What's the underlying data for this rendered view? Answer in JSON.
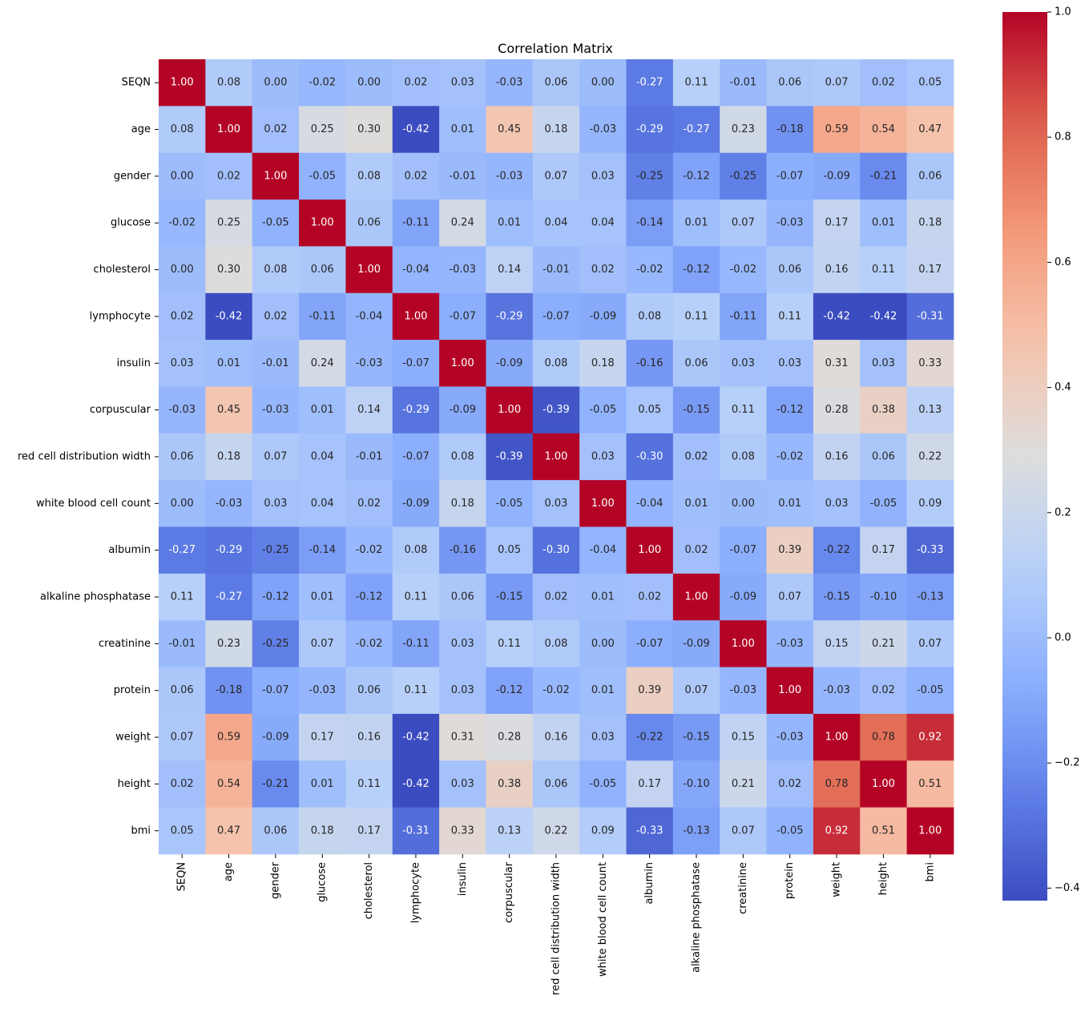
{
  "chart_data": {
    "type": "heatmap",
    "title": "Correlation Matrix",
    "xlabel": "",
    "ylabel": "",
    "colormap": "coolwarm",
    "vmin": -0.42,
    "vmax": 1.0,
    "colorbar_ticks": [
      "1.0",
      "0.8",
      "0.6",
      "0.4",
      "0.2",
      "0.0",
      "−0.2",
      "−0.4"
    ],
    "colorbar_tick_values": [
      1.0,
      0.8,
      0.6,
      0.4,
      0.2,
      0.0,
      -0.2,
      -0.4
    ],
    "labels": [
      "SEQN",
      "age",
      "gender",
      "glucose",
      "cholesterol",
      "lymphocyte",
      "insulin",
      "corpuscular",
      "red cell distribution width",
      "white blood cell count",
      "albumin",
      "alkaline phosphatase",
      "creatinine",
      "protein",
      "weight",
      "height",
      "bmi"
    ],
    "matrix": [
      [
        1.0,
        0.08,
        0.0,
        -0.02,
        0.0,
        0.02,
        0.03,
        -0.03,
        0.06,
        0.0,
        -0.27,
        0.11,
        -0.01,
        0.06,
        0.07,
        0.02,
        0.05
      ],
      [
        0.08,
        1.0,
        0.02,
        0.25,
        0.3,
        -0.42,
        0.01,
        0.45,
        0.18,
        -0.03,
        -0.29,
        -0.27,
        0.23,
        -0.18,
        0.59,
        0.54,
        0.47
      ],
      [
        0.0,
        0.02,
        1.0,
        -0.05,
        0.08,
        0.02,
        -0.01,
        -0.03,
        0.07,
        0.03,
        -0.25,
        -0.12,
        -0.25,
        -0.07,
        -0.09,
        -0.21,
        0.06
      ],
      [
        -0.02,
        0.25,
        -0.05,
        1.0,
        0.06,
        -0.11,
        0.24,
        0.01,
        0.04,
        0.04,
        -0.14,
        0.01,
        0.07,
        -0.03,
        0.17,
        0.01,
        0.18
      ],
      [
        0.0,
        0.3,
        0.08,
        0.06,
        1.0,
        -0.04,
        -0.03,
        0.14,
        -0.01,
        0.02,
        -0.02,
        -0.12,
        -0.02,
        0.06,
        0.16,
        0.11,
        0.17
      ],
      [
        0.02,
        -0.42,
        0.02,
        -0.11,
        -0.04,
        1.0,
        -0.07,
        -0.29,
        -0.07,
        -0.09,
        0.08,
        0.11,
        -0.11,
        0.11,
        -0.42,
        -0.42,
        -0.31
      ],
      [
        0.03,
        0.01,
        -0.01,
        0.24,
        -0.03,
        -0.07,
        1.0,
        -0.09,
        0.08,
        0.18,
        -0.16,
        0.06,
        0.03,
        0.03,
        0.31,
        0.03,
        0.33
      ],
      [
        -0.03,
        0.45,
        -0.03,
        0.01,
        0.14,
        -0.29,
        -0.09,
        1.0,
        -0.39,
        -0.05,
        0.05,
        -0.15,
        0.11,
        -0.12,
        0.28,
        0.38,
        0.13
      ],
      [
        0.06,
        0.18,
        0.07,
        0.04,
        -0.01,
        -0.07,
        0.08,
        -0.39,
        1.0,
        0.03,
        -0.3,
        0.02,
        0.08,
        -0.02,
        0.16,
        0.06,
        0.22
      ],
      [
        0.0,
        -0.03,
        0.03,
        0.04,
        0.02,
        -0.09,
        0.18,
        -0.05,
        0.03,
        1.0,
        -0.04,
        0.01,
        -0.0,
        0.01,
        0.03,
        -0.05,
        0.09
      ],
      [
        -0.27,
        -0.29,
        -0.25,
        -0.14,
        -0.02,
        0.08,
        -0.16,
        0.05,
        -0.3,
        -0.04,
        1.0,
        0.02,
        -0.07,
        0.39,
        -0.22,
        0.17,
        -0.33
      ],
      [
        0.11,
        -0.27,
        -0.12,
        0.01,
        -0.12,
        0.11,
        0.06,
        -0.15,
        0.02,
        0.01,
        0.02,
        1.0,
        -0.09,
        0.07,
        -0.15,
        -0.1,
        -0.13
      ],
      [
        -0.01,
        0.23,
        -0.25,
        0.07,
        -0.02,
        -0.11,
        0.03,
        0.11,
        0.08,
        -0.0,
        -0.07,
        -0.09,
        1.0,
        -0.03,
        0.15,
        0.21,
        0.07
      ],
      [
        0.06,
        -0.18,
        -0.07,
        -0.03,
        0.06,
        0.11,
        0.03,
        -0.12,
        -0.02,
        0.01,
        0.39,
        0.07,
        -0.03,
        1.0,
        -0.03,
        0.02,
        -0.05
      ],
      [
        0.07,
        0.59,
        -0.09,
        0.17,
        0.16,
        -0.42,
        0.31,
        0.28,
        0.16,
        0.03,
        -0.22,
        -0.15,
        0.15,
        -0.03,
        1.0,
        0.78,
        0.92
      ],
      [
        0.02,
        0.54,
        -0.21,
        0.01,
        0.11,
        -0.42,
        0.03,
        0.38,
        0.06,
        -0.05,
        0.17,
        -0.1,
        0.21,
        0.02,
        0.78,
        1.0,
        0.51
      ],
      [
        0.05,
        0.47,
        0.06,
        0.18,
        0.17,
        -0.31,
        0.33,
        0.13,
        0.22,
        0.09,
        -0.33,
        -0.13,
        0.07,
        -0.05,
        0.92,
        0.51,
        1.0
      ]
    ],
    "annotations_format": "0.00",
    "grid": false,
    "legend": "colorbar-right"
  }
}
